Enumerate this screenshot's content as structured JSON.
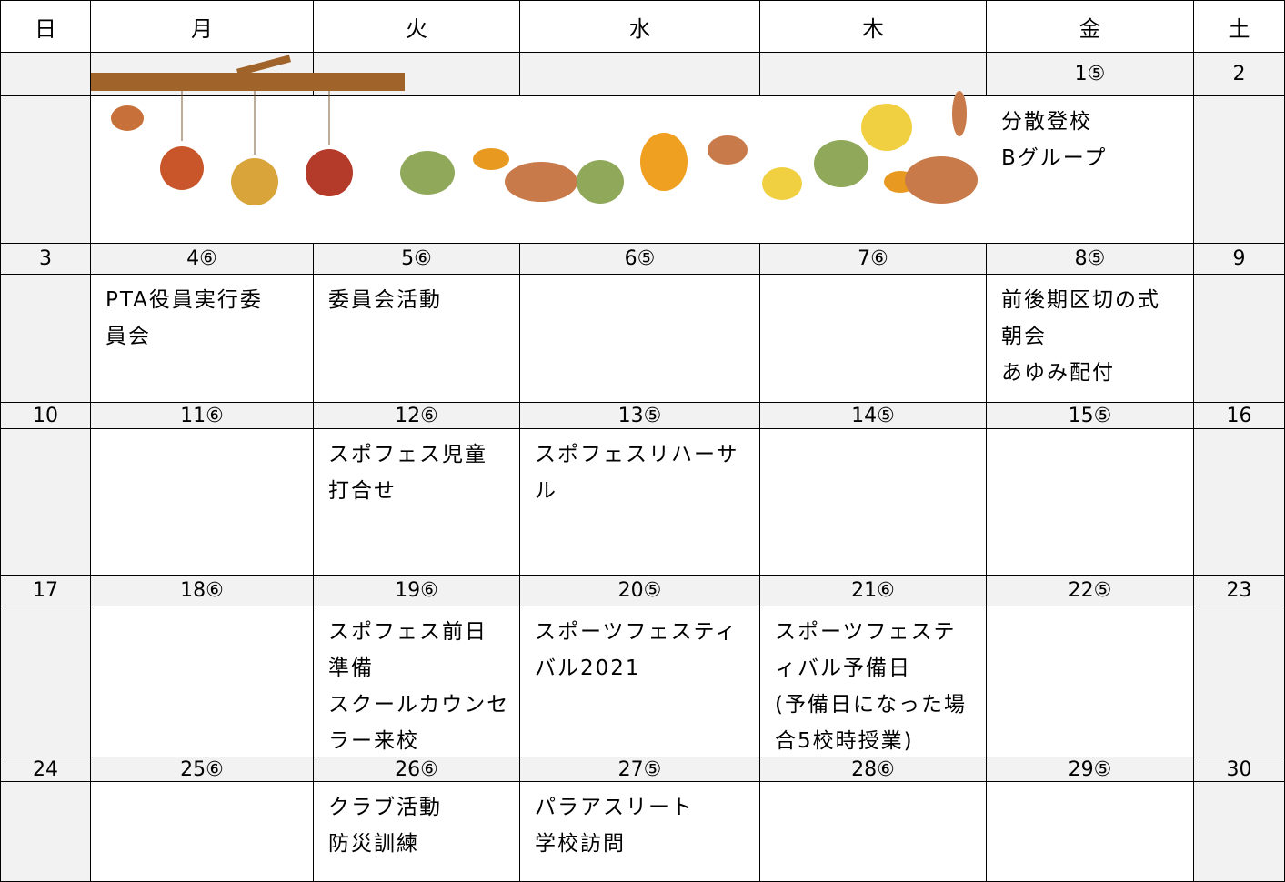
{
  "header": {
    "days": [
      "日",
      "月",
      "火",
      "水",
      "木",
      "金",
      "土"
    ]
  },
  "weeks": [
    {
      "dates": [
        null,
        null,
        null,
        null,
        null,
        "1⑤",
        "2"
      ],
      "events": [
        null,
        null,
        null,
        null,
        null,
        [
          "分散登校",
          "Bグループ"
        ],
        null
      ]
    },
    {
      "dates": [
        "3",
        "4⑥",
        "5⑥",
        "6⑤",
        "7⑥",
        "8⑤",
        "9"
      ],
      "events": [
        null,
        [
          "PTA役員実行委",
          "員会"
        ],
        [
          "委員会活動"
        ],
        null,
        null,
        [
          "前後期区切の式",
          "朝会",
          "あゆみ配付"
        ],
        null
      ]
    },
    {
      "dates": [
        "10",
        "11⑥",
        "12⑥",
        "13⑤",
        "14⑤",
        "15⑤",
        "16"
      ],
      "events": [
        null,
        null,
        [
          "スポフェス児童",
          "打合せ"
        ],
        [
          "スポフェスリハーサ",
          "ル"
        ],
        null,
        null,
        null
      ]
    },
    {
      "dates": [
        "17",
        "18⑥",
        "19⑥",
        "20⑤",
        "21⑥",
        "22⑤",
        "23"
      ],
      "events": [
        null,
        null,
        [
          "スポフェス前日",
          "準備",
          "スクールカウンセ",
          "ラー来校"
        ],
        [
          "スポーツフェスティ",
          "バル2021"
        ],
        [
          "スポーツフェステ",
          "ィバル予備日",
          "(予備日になった場",
          "合5校時授業)"
        ],
        null,
        null
      ]
    },
    {
      "dates": [
        "24",
        "25⑥",
        "26⑥",
        "27⑤",
        "28⑥",
        "29⑤",
        "30"
      ],
      "events": [
        null,
        null,
        [
          "クラブ活動",
          "防災訓練"
        ],
        [
          "パラアスリート",
          "学校訪問"
        ],
        null,
        null,
        null
      ]
    }
  ]
}
